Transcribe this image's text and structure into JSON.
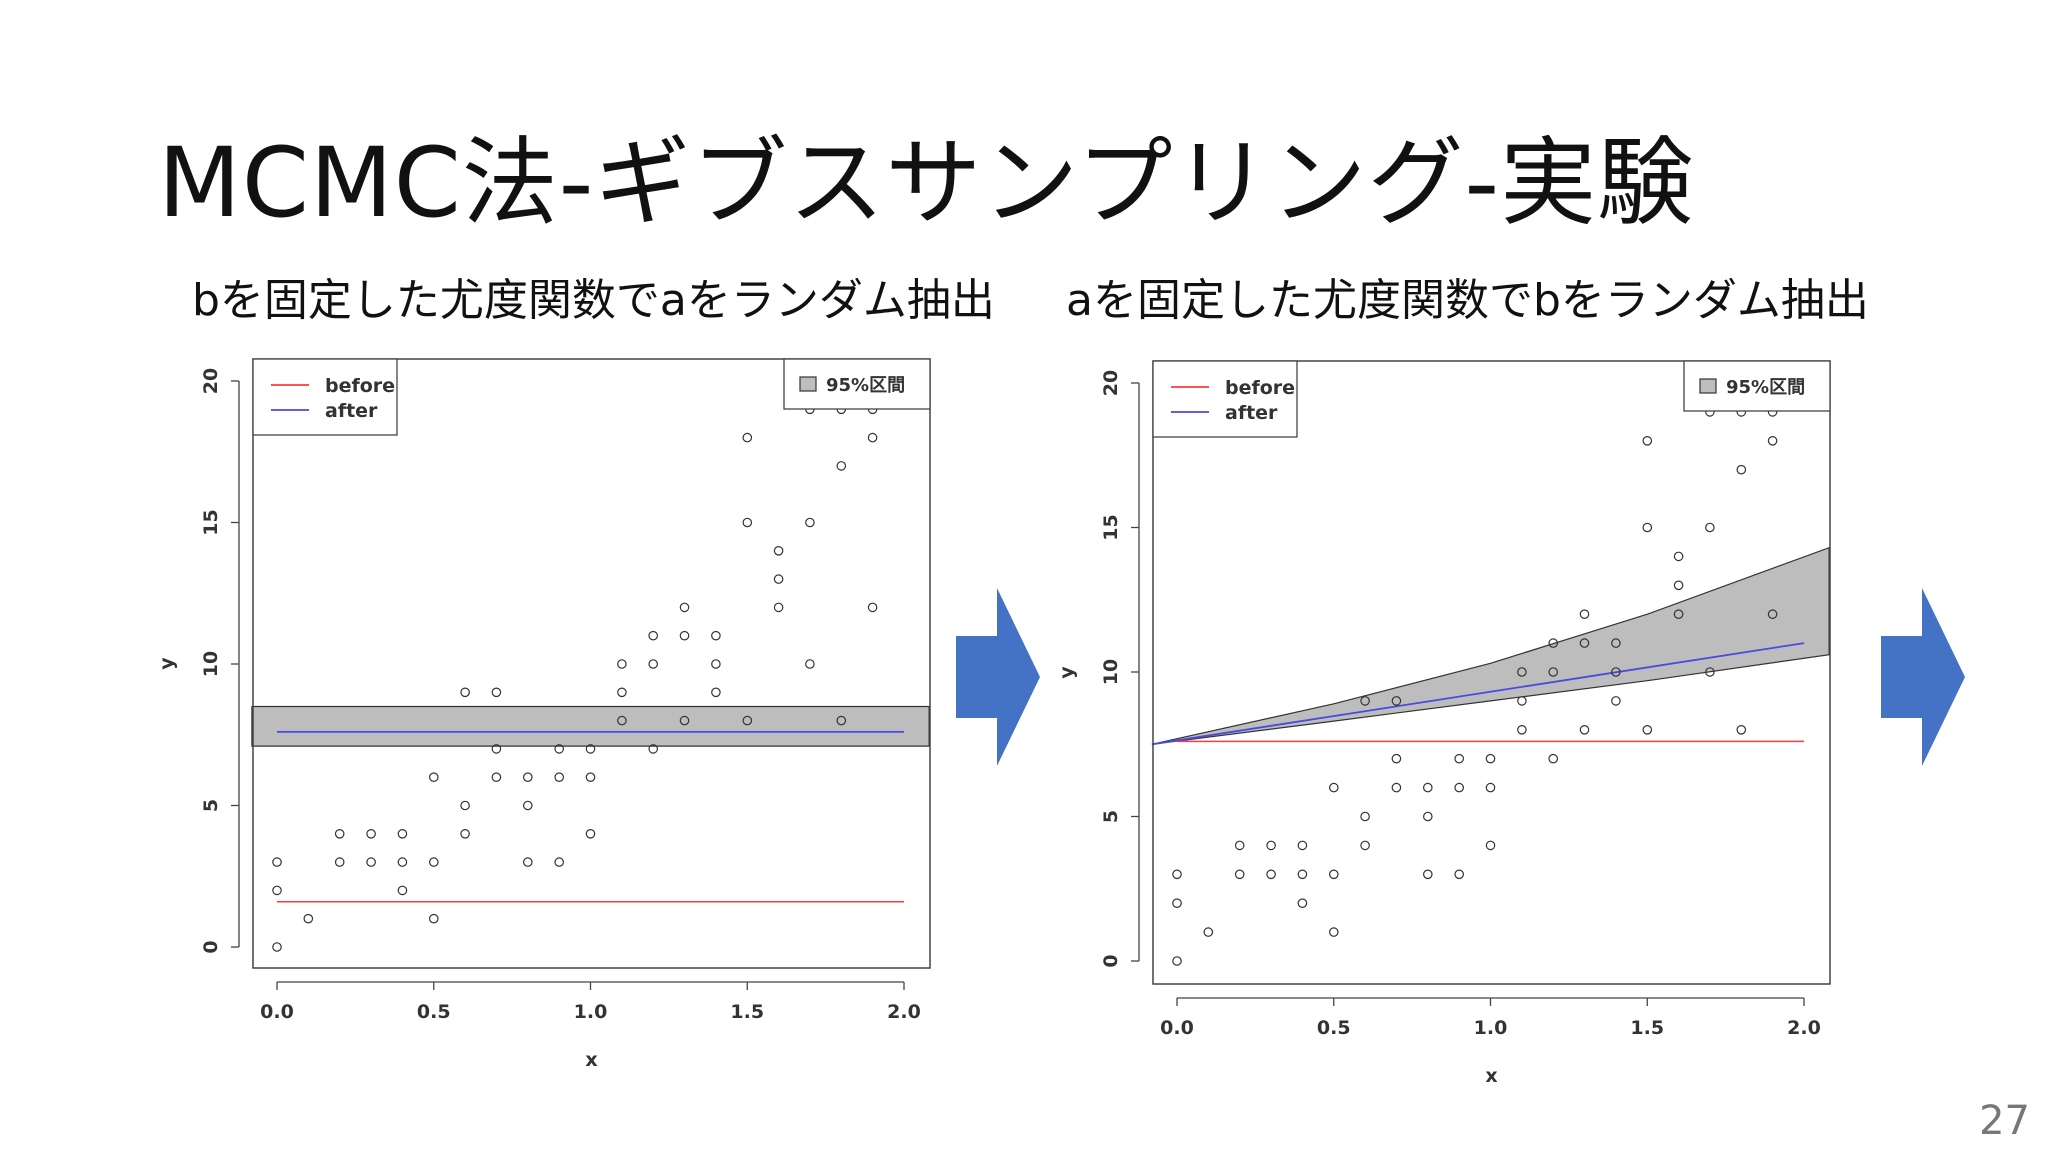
{
  "slide": {
    "title": "MCMC法-ギブスサンプリング-実験",
    "page_number": "27",
    "subtitle_left": "bを固定した尤度関数でaをランダム抽出",
    "subtitle_right": "aを固定した尤度関数でbをランダム抽出"
  },
  "colors": {
    "before": "#ff3b3b",
    "after": "#4a4adf",
    "band": "#bdbdbd",
    "arrow": "#4472c4"
  },
  "chart_data": [
    {
      "type": "scatter",
      "xlabel": "x",
      "ylabel": "y",
      "xlim": [
        0.0,
        2.0
      ],
      "ylim": [
        0,
        20
      ],
      "xticks": [
        "0.0",
        "0.5",
        "1.0",
        "1.5",
        "2.0"
      ],
      "yticks": [
        "0",
        "5",
        "10",
        "15",
        "20"
      ],
      "legend": [
        "before",
        "after"
      ],
      "band_legend": "95%区間",
      "points": [
        [
          0,
          0
        ],
        [
          0,
          2
        ],
        [
          0,
          3
        ],
        [
          0.1,
          1
        ],
        [
          0.2,
          3
        ],
        [
          0.2,
          4
        ],
        [
          0.3,
          3
        ],
        [
          0.3,
          4
        ],
        [
          0.4,
          2
        ],
        [
          0.4,
          3
        ],
        [
          0.4,
          4
        ],
        [
          0.5,
          1
        ],
        [
          0.5,
          3
        ],
        [
          0.5,
          6
        ],
        [
          0.6,
          4
        ],
        [
          0.6,
          5
        ],
        [
          0.6,
          9
        ],
        [
          0.7,
          6
        ],
        [
          0.7,
          7
        ],
        [
          0.7,
          9
        ],
        [
          0.8,
          3
        ],
        [
          0.8,
          5
        ],
        [
          0.8,
          6
        ],
        [
          0.9,
          3
        ],
        [
          0.9,
          6
        ],
        [
          0.9,
          7
        ],
        [
          1.0,
          4
        ],
        [
          1.0,
          6
        ],
        [
          1.0,
          7
        ],
        [
          1.1,
          8
        ],
        [
          1.1,
          9
        ],
        [
          1.1,
          10
        ],
        [
          1.2,
          7
        ],
        [
          1.2,
          10
        ],
        [
          1.2,
          11
        ],
        [
          1.3,
          8
        ],
        [
          1.3,
          11
        ],
        [
          1.3,
          12
        ],
        [
          1.4,
          9
        ],
        [
          1.4,
          10
        ],
        [
          1.4,
          11
        ],
        [
          1.5,
          8
        ],
        [
          1.5,
          15
        ],
        [
          1.5,
          18
        ],
        [
          1.6,
          12
        ],
        [
          1.6,
          13
        ],
        [
          1.6,
          14
        ],
        [
          1.7,
          10
        ],
        [
          1.7,
          15
        ],
        [
          1.7,
          19
        ],
        [
          1.8,
          8
        ],
        [
          1.8,
          17
        ],
        [
          1.8,
          19
        ],
        [
          1.9,
          12
        ],
        [
          1.9,
          18
        ],
        [
          1.9,
          19
        ]
      ],
      "before_line": [
        [
          0,
          1.6
        ],
        [
          2.0,
          1.6
        ]
      ],
      "after_line": [
        [
          0,
          7.6
        ],
        [
          2.0,
          7.6
        ]
      ],
      "band_lower": [
        [
          -0.08,
          7.1
        ],
        [
          2.08,
          7.1
        ]
      ],
      "band_upper": [
        [
          -0.08,
          8.5
        ],
        [
          2.08,
          8.5
        ]
      ]
    },
    {
      "type": "scatter",
      "xlabel": "x",
      "ylabel": "y",
      "xlim": [
        0.0,
        2.0
      ],
      "ylim": [
        0,
        20
      ],
      "xticks": [
        "0.0",
        "0.5",
        "1.0",
        "1.5",
        "2.0"
      ],
      "yticks": [
        "0",
        "5",
        "10",
        "15",
        "20"
      ],
      "legend": [
        "before",
        "after"
      ],
      "band_legend": "95%区間",
      "points": [
        [
          0,
          0
        ],
        [
          0,
          2
        ],
        [
          0,
          3
        ],
        [
          0.1,
          1
        ],
        [
          0.2,
          3
        ],
        [
          0.2,
          4
        ],
        [
          0.3,
          3
        ],
        [
          0.3,
          4
        ],
        [
          0.4,
          2
        ],
        [
          0.4,
          3
        ],
        [
          0.4,
          4
        ],
        [
          0.5,
          1
        ],
        [
          0.5,
          3
        ],
        [
          0.5,
          6
        ],
        [
          0.6,
          4
        ],
        [
          0.6,
          5
        ],
        [
          0.6,
          9
        ],
        [
          0.7,
          6
        ],
        [
          0.7,
          7
        ],
        [
          0.7,
          9
        ],
        [
          0.8,
          3
        ],
        [
          0.8,
          5
        ],
        [
          0.8,
          6
        ],
        [
          0.9,
          3
        ],
        [
          0.9,
          6
        ],
        [
          0.9,
          7
        ],
        [
          1.0,
          4
        ],
        [
          1.0,
          6
        ],
        [
          1.0,
          7
        ],
        [
          1.1,
          8
        ],
        [
          1.1,
          9
        ],
        [
          1.1,
          10
        ],
        [
          1.2,
          7
        ],
        [
          1.2,
          10
        ],
        [
          1.2,
          11
        ],
        [
          1.3,
          8
        ],
        [
          1.3,
          11
        ],
        [
          1.3,
          12
        ],
        [
          1.4,
          9
        ],
        [
          1.4,
          10
        ],
        [
          1.4,
          11
        ],
        [
          1.5,
          8
        ],
        [
          1.5,
          15
        ],
        [
          1.5,
          18
        ],
        [
          1.6,
          12
        ],
        [
          1.6,
          13
        ],
        [
          1.6,
          14
        ],
        [
          1.7,
          10
        ],
        [
          1.7,
          15
        ],
        [
          1.7,
          19
        ],
        [
          1.8,
          8
        ],
        [
          1.8,
          17
        ],
        [
          1.8,
          19
        ],
        [
          1.9,
          12
        ],
        [
          1.9,
          18
        ],
        [
          1.9,
          19
        ]
      ],
      "before_line": [
        [
          0,
          7.6
        ],
        [
          2.0,
          7.6
        ]
      ],
      "after_line": [
        [
          -0.08,
          7.5
        ],
        [
          2.0,
          11.0
        ]
      ],
      "band_lower": [
        [
          -0.08,
          7.5
        ],
        [
          0.5,
          8.3
        ],
        [
          1.0,
          9.0
        ],
        [
          1.5,
          9.7
        ],
        [
          2.08,
          10.6
        ]
      ],
      "band_upper": [
        [
          -0.08,
          7.5
        ],
        [
          0.5,
          8.9
        ],
        [
          1.0,
          10.3
        ],
        [
          1.5,
          12.0
        ],
        [
          2.08,
          14.3
        ]
      ]
    }
  ]
}
